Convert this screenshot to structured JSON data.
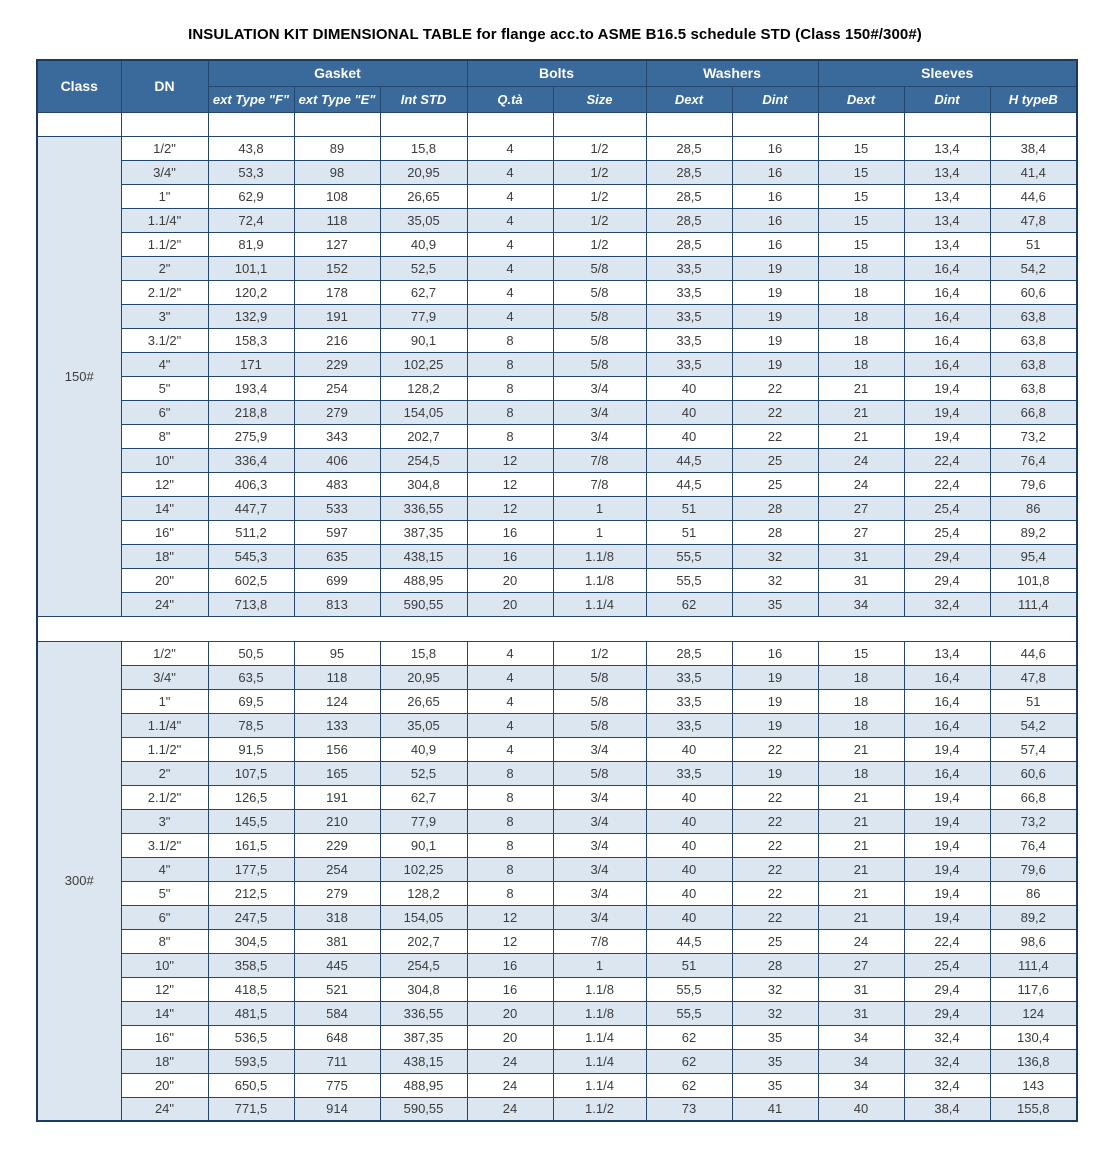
{
  "title": "INSULATION KIT DIMENSIONAL TABLE for flange acc.to ASME B16.5 schedule STD (Class 150#/300#)",
  "colors": {
    "header_bg": "#3A6A9C",
    "header_text": "#FFFFFF",
    "row_alt_bg": "#DCE6F1",
    "row_bg": "#FFFFFF",
    "grid_border": "#24466B",
    "outer_border": "#1C3A5E",
    "cell_text": "#3C3C3C",
    "title_text": "#000000"
  },
  "table": {
    "header": {
      "class_label": "Class",
      "dn_label": "DN",
      "groups": [
        {
          "label": "Gasket"
        },
        {
          "label": "Bolts"
        },
        {
          "label": "Washers"
        },
        {
          "label": "Sleeves"
        }
      ],
      "sub_labels": [
        "ext Type \"F\"",
        "ext Type \"E\"",
        "Int STD",
        "Q.tà",
        "Size",
        "Dext",
        "Dint",
        "Dext",
        "Dint",
        "H typeB"
      ]
    },
    "column_keys": [
      "dn",
      "gasket-ext-type-f",
      "gasket-ext-type-e",
      "gasket-int-std",
      "bolts-qty",
      "bolts-size",
      "washer-dext",
      "washer-dint",
      "sleeve-dext",
      "sleeve-dint",
      "sleeve-h-typeb"
    ],
    "sections": [
      {
        "class_label": "150#",
        "rows": [
          [
            "1/2\"",
            "43,8",
            "89",
            "15,8",
            "4",
            "1/2",
            "28,5",
            "16",
            "15",
            "13,4",
            "38,4"
          ],
          [
            "3/4\"",
            "53,3",
            "98",
            "20,95",
            "4",
            "1/2",
            "28,5",
            "16",
            "15",
            "13,4",
            "41,4"
          ],
          [
            "1\"",
            "62,9",
            "108",
            "26,65",
            "4",
            "1/2",
            "28,5",
            "16",
            "15",
            "13,4",
            "44,6"
          ],
          [
            "1.1/4\"",
            "72,4",
            "118",
            "35,05",
            "4",
            "1/2",
            "28,5",
            "16",
            "15",
            "13,4",
            "47,8"
          ],
          [
            "1.1/2\"",
            "81,9",
            "127",
            "40,9",
            "4",
            "1/2",
            "28,5",
            "16",
            "15",
            "13,4",
            "51"
          ],
          [
            "2\"",
            "101,1",
            "152",
            "52,5",
            "4",
            "5/8",
            "33,5",
            "19",
            "18",
            "16,4",
            "54,2"
          ],
          [
            "2.1/2\"",
            "120,2",
            "178",
            "62,7",
            "4",
            "5/8",
            "33,5",
            "19",
            "18",
            "16,4",
            "60,6"
          ],
          [
            "3\"",
            "132,9",
            "191",
            "77,9",
            "4",
            "5/8",
            "33,5",
            "19",
            "18",
            "16,4",
            "63,8"
          ],
          [
            "3.1/2\"",
            "158,3",
            "216",
            "90,1",
            "8",
            "5/8",
            "33,5",
            "19",
            "18",
            "16,4",
            "63,8"
          ],
          [
            "4\"",
            "171",
            "229",
            "102,25",
            "8",
            "5/8",
            "33,5",
            "19",
            "18",
            "16,4",
            "63,8"
          ],
          [
            "5\"",
            "193,4",
            "254",
            "128,2",
            "8",
            "3/4",
            "40",
            "22",
            "21",
            "19,4",
            "63,8"
          ],
          [
            "6\"",
            "218,8",
            "279",
            "154,05",
            "8",
            "3/4",
            "40",
            "22",
            "21",
            "19,4",
            "66,8"
          ],
          [
            "8\"",
            "275,9",
            "343",
            "202,7",
            "8",
            "3/4",
            "40",
            "22",
            "21",
            "19,4",
            "73,2"
          ],
          [
            "10\"",
            "336,4",
            "406",
            "254,5",
            "12",
            "7/8",
            "44,5",
            "25",
            "24",
            "22,4",
            "76,4"
          ],
          [
            "12\"",
            "406,3",
            "483",
            "304,8",
            "12",
            "7/8",
            "44,5",
            "25",
            "24",
            "22,4",
            "79,6"
          ],
          [
            "14\"",
            "447,7",
            "533",
            "336,55",
            "12",
            "1",
            "51",
            "28",
            "27",
            "25,4",
            "86"
          ],
          [
            "16\"",
            "511,2",
            "597",
            "387,35",
            "16",
            "1",
            "51",
            "28",
            "27",
            "25,4",
            "89,2"
          ],
          [
            "18\"",
            "545,3",
            "635",
            "438,15",
            "16",
            "1.1/8",
            "55,5",
            "32",
            "31",
            "29,4",
            "95,4"
          ],
          [
            "20\"",
            "602,5",
            "699",
            "488,95",
            "20",
            "1.1/8",
            "55,5",
            "32",
            "31",
            "29,4",
            "101,8"
          ],
          [
            "24\"",
            "713,8",
            "813",
            "590,55",
            "20",
            "1.1/4",
            "62",
            "35",
            "34",
            "32,4",
            "111,4"
          ]
        ]
      },
      {
        "class_label": "300#",
        "rows": [
          [
            "1/2\"",
            "50,5",
            "95",
            "15,8",
            "4",
            "1/2",
            "28,5",
            "16",
            "15",
            "13,4",
            "44,6"
          ],
          [
            "3/4\"",
            "63,5",
            "118",
            "20,95",
            "4",
            "5/8",
            "33,5",
            "19",
            "18",
            "16,4",
            "47,8"
          ],
          [
            "1\"",
            "69,5",
            "124",
            "26,65",
            "4",
            "5/8",
            "33,5",
            "19",
            "18",
            "16,4",
            "51"
          ],
          [
            "1.1/4\"",
            "78,5",
            "133",
            "35,05",
            "4",
            "5/8",
            "33,5",
            "19",
            "18",
            "16,4",
            "54,2"
          ],
          [
            "1.1/2\"",
            "91,5",
            "156",
            "40,9",
            "4",
            "3/4",
            "40",
            "22",
            "21",
            "19,4",
            "57,4"
          ],
          [
            "2\"",
            "107,5",
            "165",
            "52,5",
            "8",
            "5/8",
            "33,5",
            "19",
            "18",
            "16,4",
            "60,6"
          ],
          [
            "2.1/2\"",
            "126,5",
            "191",
            "62,7",
            "8",
            "3/4",
            "40",
            "22",
            "21",
            "19,4",
            "66,8"
          ],
          [
            "3\"",
            "145,5",
            "210",
            "77,9",
            "8",
            "3/4",
            "40",
            "22",
            "21",
            "19,4",
            "73,2"
          ],
          [
            "3.1/2\"",
            "161,5",
            "229",
            "90,1",
            "8",
            "3/4",
            "40",
            "22",
            "21",
            "19,4",
            "76,4"
          ],
          [
            "4\"",
            "177,5",
            "254",
            "102,25",
            "8",
            "3/4",
            "40",
            "22",
            "21",
            "19,4",
            "79,6"
          ],
          [
            "5\"",
            "212,5",
            "279",
            "128,2",
            "8",
            "3/4",
            "40",
            "22",
            "21",
            "19,4",
            "86"
          ],
          [
            "6\"",
            "247,5",
            "318",
            "154,05",
            "12",
            "3/4",
            "40",
            "22",
            "21",
            "19,4",
            "89,2"
          ],
          [
            "8\"",
            "304,5",
            "381",
            "202,7",
            "12",
            "7/8",
            "44,5",
            "25",
            "24",
            "22,4",
            "98,6"
          ],
          [
            "10\"",
            "358,5",
            "445",
            "254,5",
            "16",
            "1",
            "51",
            "28",
            "27",
            "25,4",
            "111,4"
          ],
          [
            "12\"",
            "418,5",
            "521",
            "304,8",
            "16",
            "1.1/8",
            "55,5",
            "32",
            "31",
            "29,4",
            "117,6"
          ],
          [
            "14\"",
            "481,5",
            "584",
            "336,55",
            "20",
            "1.1/8",
            "55,5",
            "32",
            "31",
            "29,4",
            "124"
          ],
          [
            "16\"",
            "536,5",
            "648",
            "387,35",
            "20",
            "1.1/4",
            "62",
            "35",
            "34",
            "32,4",
            "130,4"
          ],
          [
            "18\"",
            "593,5",
            "711",
            "438,15",
            "24",
            "1.1/4",
            "62",
            "35",
            "34",
            "32,4",
            "136,8"
          ],
          [
            "20\"",
            "650,5",
            "775",
            "488,95",
            "24",
            "1.1/4",
            "62",
            "35",
            "34",
            "32,4",
            "143"
          ],
          [
            "24\"",
            "771,5",
            "914",
            "590,55",
            "24",
            "1.1/2",
            "73",
            "41",
            "40",
            "38,4",
            "155,8"
          ]
        ]
      }
    ]
  }
}
